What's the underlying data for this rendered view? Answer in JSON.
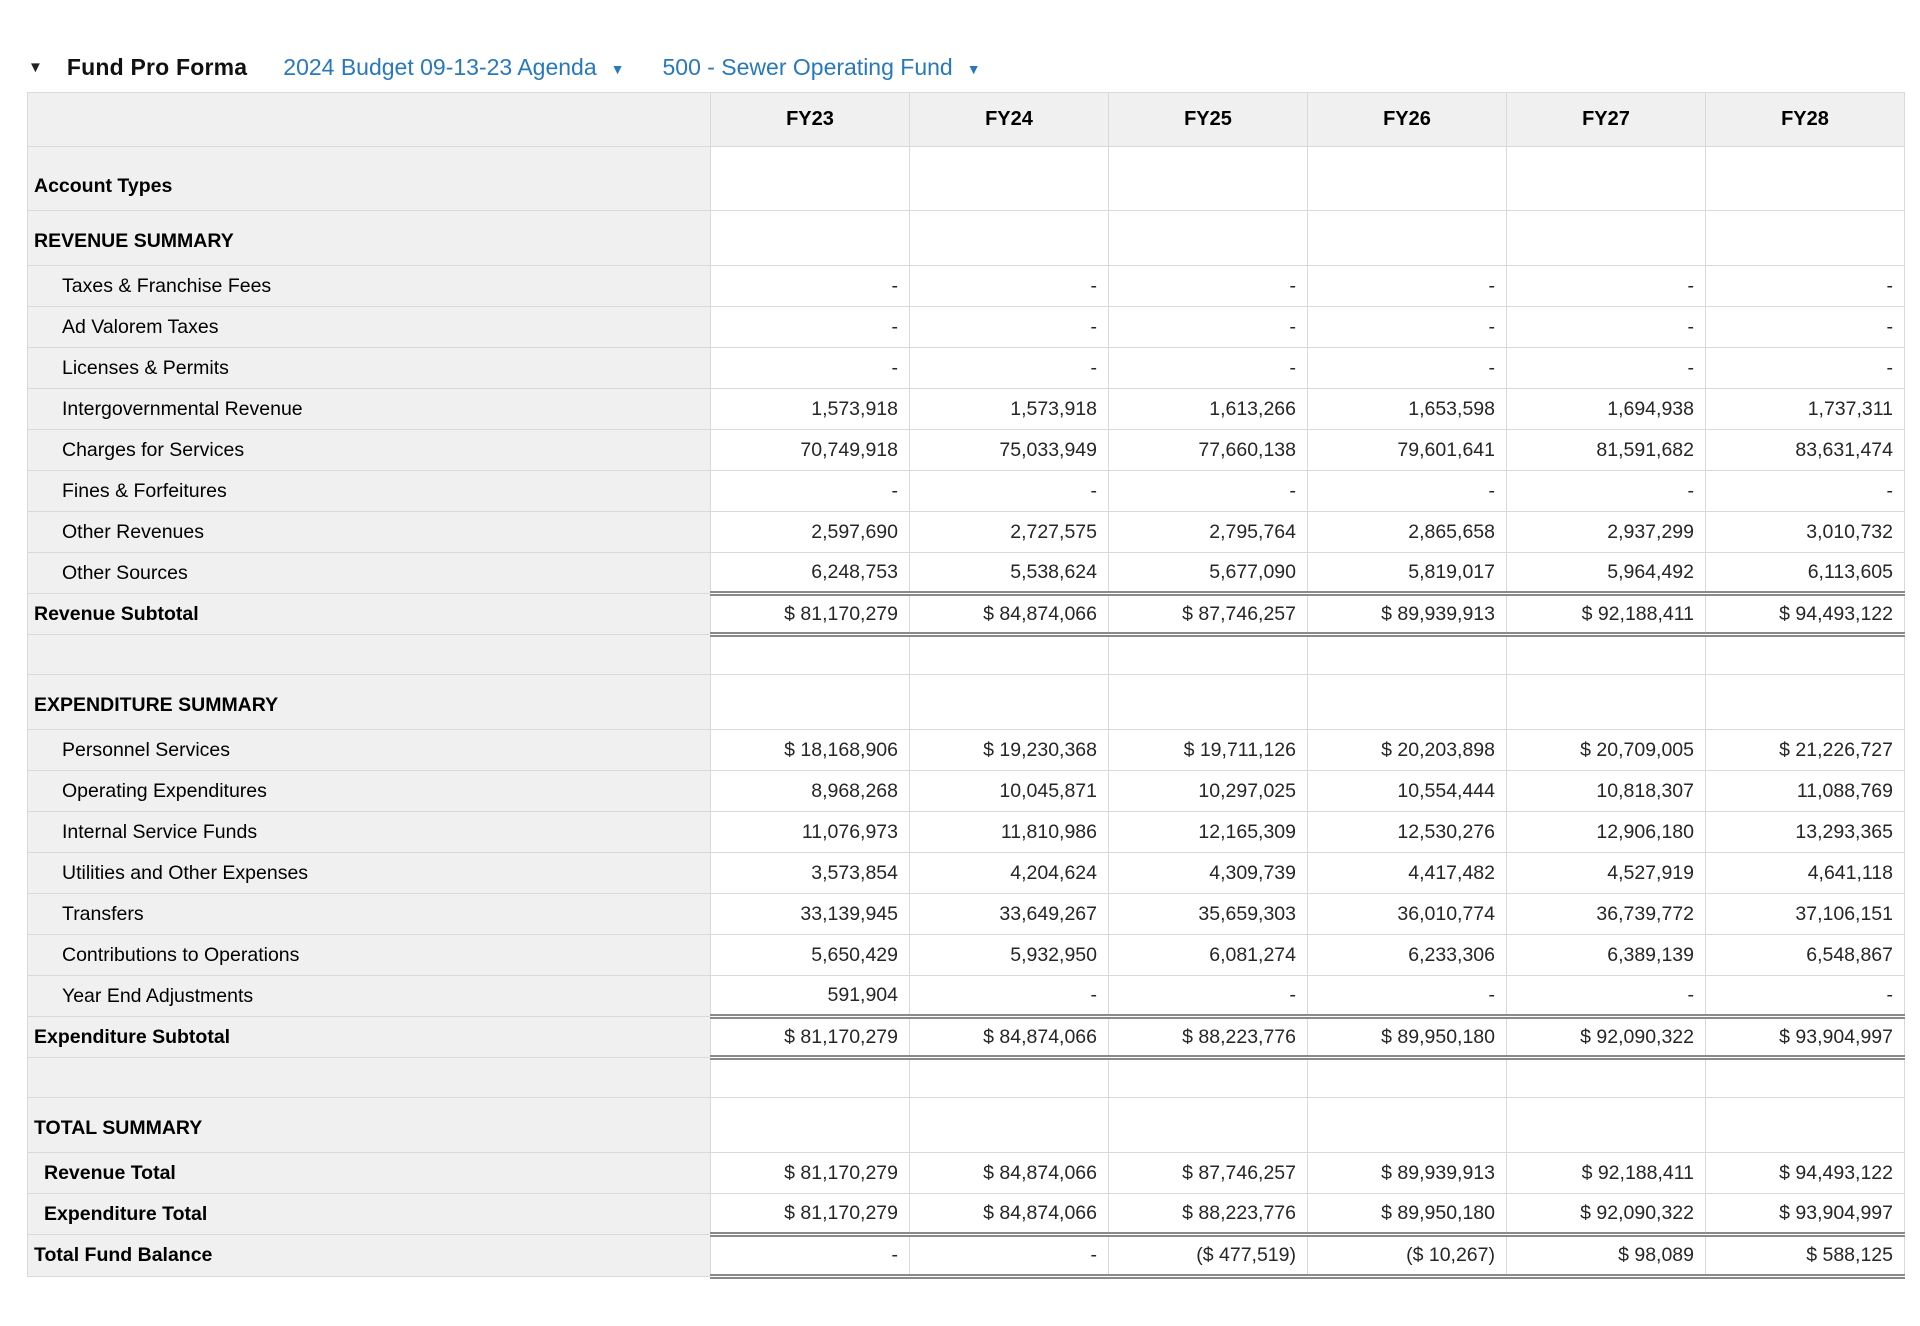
{
  "colors": {
    "link_blue": "#2878be",
    "label_bg": "#f0f0f0",
    "grid_border": "#d9d9d9",
    "double_border": "#8a8a8a"
  },
  "icons": {
    "collapse_caret": "▼",
    "dropdown_caret": "▼"
  },
  "header": {
    "title": "Fund Pro Forma",
    "budget_selector": "2024 Budget 09-13-23 Agenda",
    "fund_selector": "500 - Sewer Operating Fund"
  },
  "table": {
    "columns": [
      "FY23",
      "FY24",
      "FY25",
      "FY26",
      "FY27",
      "FY28"
    ],
    "rows": [
      {
        "type": "tall-section",
        "label": "Account Types"
      },
      {
        "type": "section",
        "label": "REVENUE SUMMARY"
      },
      {
        "type": "item",
        "label": "Taxes & Franchise Fees",
        "values": [
          "-",
          "-",
          "-",
          "-",
          "-",
          "-"
        ]
      },
      {
        "type": "item",
        "label": "Ad Valorem Taxes",
        "values": [
          "-",
          "-",
          "-",
          "-",
          "-",
          "-"
        ]
      },
      {
        "type": "item",
        "label": "Licenses & Permits",
        "values": [
          "-",
          "-",
          "-",
          "-",
          "-",
          "-"
        ]
      },
      {
        "type": "item",
        "label": "Intergovernmental Revenue",
        "values": [
          "1,573,918",
          "1,573,918",
          "1,613,266",
          "1,653,598",
          "1,694,938",
          "1,737,311"
        ]
      },
      {
        "type": "item",
        "label": "Charges for Services",
        "values": [
          "70,749,918",
          "75,033,949",
          "77,660,138",
          "79,601,641",
          "81,591,682",
          "83,631,474"
        ]
      },
      {
        "type": "item",
        "label": "Fines & Forfeitures",
        "values": [
          "-",
          "-",
          "-",
          "-",
          "-",
          "-"
        ]
      },
      {
        "type": "item",
        "label": "Other Revenues",
        "values": [
          "2,597,690",
          "2,727,575",
          "2,795,764",
          "2,865,658",
          "2,937,299",
          "3,010,732"
        ]
      },
      {
        "type": "item",
        "label": "Other Sources",
        "values": [
          "6,248,753",
          "5,538,624",
          "5,677,090",
          "5,819,017",
          "5,964,492",
          "6,113,605"
        ]
      },
      {
        "type": "subtotal",
        "label": "Revenue Subtotal",
        "values": [
          "$ 81,170,279",
          "$ 84,874,066",
          "$ 87,746,257",
          "$ 89,939,913",
          "$ 92,188,411",
          "$ 94,493,122"
        ]
      },
      {
        "type": "spacer",
        "label": ""
      },
      {
        "type": "section",
        "label": "EXPENDITURE SUMMARY"
      },
      {
        "type": "item",
        "label": "Personnel Services",
        "values": [
          "$ 18,168,906",
          "$ 19,230,368",
          "$ 19,711,126",
          "$ 20,203,898",
          "$ 20,709,005",
          "$ 21,226,727"
        ]
      },
      {
        "type": "item",
        "label": "Operating Expenditures",
        "values": [
          "8,968,268",
          "10,045,871",
          "10,297,025",
          "10,554,444",
          "10,818,307",
          "11,088,769"
        ]
      },
      {
        "type": "item",
        "label": "Internal Service Funds",
        "values": [
          "11,076,973",
          "11,810,986",
          "12,165,309",
          "12,530,276",
          "12,906,180",
          "13,293,365"
        ]
      },
      {
        "type": "item",
        "label": "Utilities and Other Expenses",
        "values": [
          "3,573,854",
          "4,204,624",
          "4,309,739",
          "4,417,482",
          "4,527,919",
          "4,641,118"
        ]
      },
      {
        "type": "item",
        "label": "Transfers",
        "values": [
          "33,139,945",
          "33,649,267",
          "35,659,303",
          "36,010,774",
          "36,739,772",
          "37,106,151"
        ]
      },
      {
        "type": "item",
        "label": "Contributions to Operations",
        "values": [
          "5,650,429",
          "5,932,950",
          "6,081,274",
          "6,233,306",
          "6,389,139",
          "6,548,867"
        ]
      },
      {
        "type": "item",
        "label": "Year End Adjustments",
        "values": [
          "591,904",
          "-",
          "-",
          "-",
          "-",
          "-"
        ]
      },
      {
        "type": "subtotal",
        "label": "Expenditure Subtotal",
        "values": [
          "$ 81,170,279",
          "$ 84,874,066",
          "$ 88,223,776",
          "$ 89,950,180",
          "$ 92,090,322",
          "$ 93,904,997"
        ]
      },
      {
        "type": "spacer",
        "label": ""
      },
      {
        "type": "section",
        "label": "TOTAL SUMMARY"
      },
      {
        "type": "total-item",
        "label": "Revenue Total",
        "values": [
          "$ 81,170,279",
          "$ 84,874,066",
          "$ 87,746,257",
          "$ 89,939,913",
          "$ 92,188,411",
          "$ 94,493,122"
        ]
      },
      {
        "type": "total-item",
        "label": "Expenditure Total",
        "values": [
          "$ 81,170,279",
          "$ 84,874,066",
          "$ 88,223,776",
          "$ 89,950,180",
          "$ 92,090,322",
          "$ 93,904,997"
        ]
      },
      {
        "type": "grand-total",
        "label": "Total Fund Balance",
        "values": [
          "-",
          "-",
          "($ 477,519)",
          "($ 10,267)",
          "$ 98,089",
          "$ 588,125"
        ]
      }
    ]
  }
}
